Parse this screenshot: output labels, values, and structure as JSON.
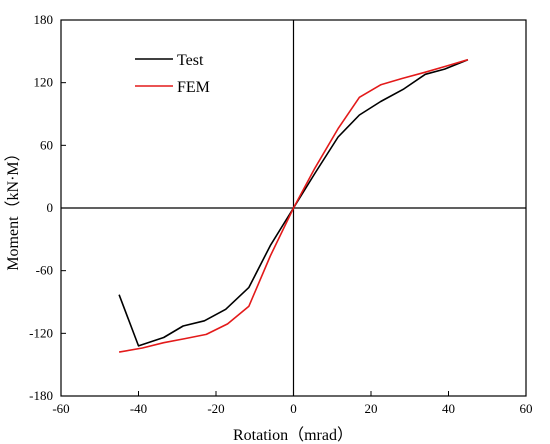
{
  "chart_data": {
    "type": "line",
    "title": "",
    "xlabel": "Rotation（mrad）",
    "ylabel": "Moment（kN·M）",
    "xlim": [
      -60,
      60
    ],
    "ylim": [
      -180,
      180
    ],
    "xticks": [
      -60,
      -40,
      -20,
      0,
      20,
      40,
      60
    ],
    "yticks": [
      -180,
      -120,
      -60,
      0,
      60,
      120,
      180
    ],
    "grid": false,
    "legend_position": "top-left",
    "series": [
      {
        "name": "Test",
        "color": "#000000",
        "x": [
          -45,
          -40,
          -33.5,
          -28.5,
          -23,
          -17.5,
          -11.5,
          -6,
          0,
          5.5,
          11.5,
          17,
          22.5,
          28.5,
          34,
          39,
          45
        ],
        "y": [
          -83,
          -132,
          -124,
          -113,
          -108,
          -97,
          -76,
          -36,
          0,
          33,
          68,
          89,
          102,
          114,
          128,
          133,
          142
        ]
      },
      {
        "name": "FEM",
        "color": "#e31a1a",
        "x": [
          -45,
          -39,
          -33.5,
          -28,
          -22.5,
          -17,
          -11.5,
          -6,
          0,
          5.5,
          11.5,
          17,
          22.5,
          28,
          34,
          39.5,
          45
        ],
        "y": [
          -138,
          -134,
          -129,
          -125,
          -121,
          -111,
          -94,
          -46,
          0,
          38,
          76,
          106,
          118,
          124,
          130,
          136,
          142
        ]
      }
    ]
  }
}
